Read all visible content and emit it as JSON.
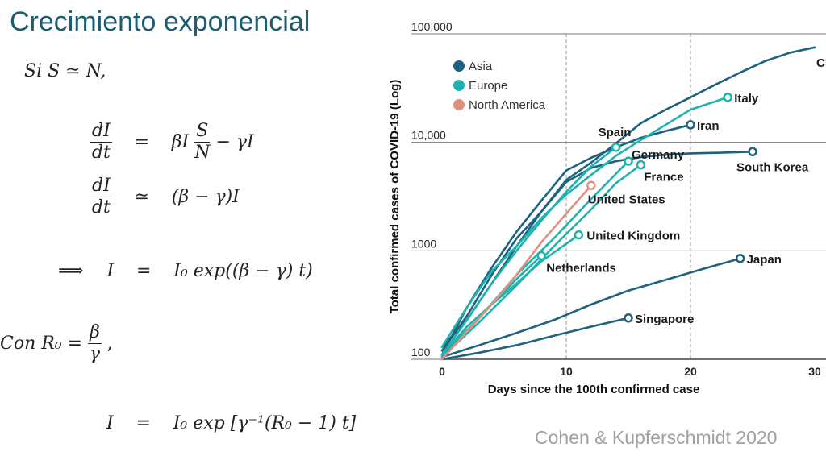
{
  "slide": {
    "title": "Crecimiento exponencial",
    "citation": "Cohen & Kupferschmidt 2020"
  },
  "equations": {
    "eq1": "Si  S ≃ N,",
    "eq2_lhs_num": "dI",
    "eq2_lhs_den": "dt",
    "eq2_rel": "=",
    "eq2_rhs_pre": "βI",
    "eq2_rhs_num": "S",
    "eq2_rhs_den": "N",
    "eq2_rhs_post": " − γI",
    "eq3_lhs_num": "dI",
    "eq3_lhs_den": "dt",
    "eq3_rel": "≃",
    "eq3_rhs": "(β − γ)I",
    "eq4_arrow": "⟹",
    "eq4_lhs": "I",
    "eq4_rel": "=",
    "eq4_rhs": "I₀ exp((β − γ) t)",
    "eq5_pre": "Con  R₀ =",
    "eq5_num": "β",
    "eq5_den": "γ",
    "eq5_post": ",",
    "eq6_lhs": "I",
    "eq6_rel": "=",
    "eq6_rhs": "I₀ exp [γ⁻¹(R₀ − 1) t]"
  },
  "chart_data": {
    "type": "line",
    "xlabel": "Days since the 100th confirmed case",
    "ylabel": "Total confirmed cases of COVID-19 (Log)",
    "y_scale": "log",
    "xlim": [
      0,
      30
    ],
    "ylim": [
      100,
      100000
    ],
    "x_ticks": [
      "0",
      "10",
      "20",
      "30"
    ],
    "y_ticks": [
      "100",
      "1000",
      "10,000",
      "100,000"
    ],
    "grid": "horizontal solid at y ticks, vertical dashed at x = 10, 20",
    "legend": {
      "placement": "top-left",
      "entries": [
        {
          "label": "Asia",
          "color": "#1d6380"
        },
        {
          "label": "Europe",
          "color": "#1fb3b0"
        },
        {
          "label": "North America",
          "color": "#e0907f"
        }
      ]
    },
    "series": [
      {
        "name": "China",
        "group": "Asia",
        "x": [
          0,
          2,
          4,
          6,
          8,
          10,
          12,
          14,
          16,
          18,
          20,
          22,
          24,
          26,
          28,
          30
        ],
        "y": [
          130,
          230,
          500,
          1100,
          2300,
          4500,
          6500,
          9800,
          15000,
          20000,
          26000,
          34000,
          44000,
          56000,
          67000,
          75000
        ]
      },
      {
        "name": "Iran",
        "group": "Asia",
        "x": [
          0,
          2,
          4,
          6,
          8,
          10,
          12,
          14,
          16,
          18,
          20
        ],
        "y": [
          110,
          300,
          700,
          1500,
          2900,
          5500,
          7200,
          9000,
          11000,
          12700,
          14500
        ]
      },
      {
        "name": "South Korea",
        "group": "Asia",
        "x": [
          0,
          2,
          4,
          6,
          8,
          10,
          12,
          14,
          16,
          18,
          20,
          22,
          25
        ],
        "y": [
          120,
          250,
          600,
          1300,
          2300,
          4300,
          5800,
          6700,
          7300,
          7700,
          7900,
          8000,
          8200
        ]
      },
      {
        "name": "Japan",
        "group": "Asia",
        "x": [
          0,
          3,
          6,
          9,
          12,
          15,
          18,
          21,
          24
        ],
        "y": [
          105,
          135,
          175,
          230,
          320,
          430,
          540,
          680,
          850
        ]
      },
      {
        "name": "Singapore",
        "group": "Asia",
        "x": [
          0,
          3,
          6,
          9,
          12,
          15
        ],
        "y": [
          100,
          115,
          135,
          165,
          200,
          240
        ]
      },
      {
        "name": "Italy",
        "group": "Europe",
        "x": [
          0,
          2,
          4,
          6,
          8,
          10,
          12,
          14,
          16,
          18,
          20,
          23
        ],
        "y": [
          130,
          300,
          650,
          1100,
          2000,
          3300,
          5000,
          7500,
          10500,
          14500,
          20000,
          26000
        ]
      },
      {
        "name": "Spain",
        "group": "Europe",
        "x": [
          0,
          2,
          4,
          6,
          8,
          10,
          12,
          14
        ],
        "y": [
          110,
          230,
          500,
          1000,
          1900,
          3500,
          6000,
          9000
        ]
      },
      {
        "name": "Germany",
        "group": "Europe",
        "x": [
          0,
          3,
          6,
          9,
          12,
          15
        ],
        "y": [
          110,
          240,
          600,
          1300,
          3000,
          6700
        ]
      },
      {
        "name": "France",
        "group": "Europe",
        "x": [
          0,
          3,
          6,
          9,
          12,
          14,
          16
        ],
        "y": [
          105,
          220,
          480,
          1100,
          2400,
          4200,
          6200
        ]
      },
      {
        "name": "United Kingdom",
        "group": "Europe",
        "x": [
          0,
          2,
          4,
          6,
          8,
          11
        ],
        "y": [
          110,
          200,
          320,
          500,
          800,
          1400
        ]
      },
      {
        "name": "Netherlands",
        "group": "Europe",
        "x": [
          0,
          2,
          4,
          6,
          8
        ],
        "y": [
          110,
          180,
          320,
          550,
          900
        ]
      },
      {
        "name": "United States",
        "group": "North America",
        "x": [
          0,
          2,
          4,
          6,
          8,
          10,
          12
        ],
        "y": [
          100,
          180,
          320,
          600,
          1200,
          2200,
          4000
        ]
      }
    ]
  }
}
